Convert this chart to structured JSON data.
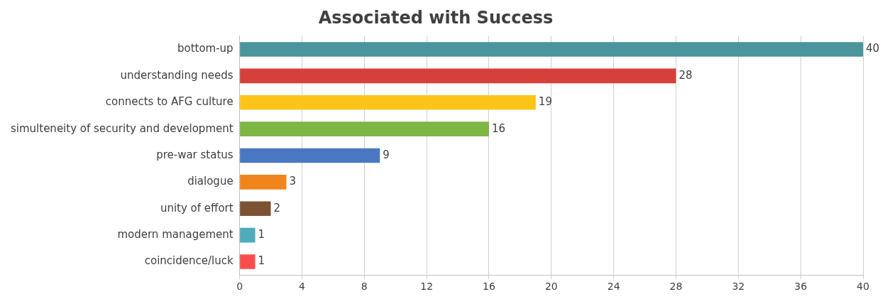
{
  "chart_data": {
    "type": "bar",
    "title": "Associated with Success",
    "orientation": "horizontal",
    "categories": [
      "bottom-up",
      "understanding needs",
      "connects to AFG culture",
      "simulteneity of security and development",
      "pre-war status",
      "dialogue",
      "unity of effort",
      "modern management",
      "coincidence/luck"
    ],
    "values": [
      40,
      28,
      19,
      16,
      9,
      3,
      2,
      1,
      1
    ],
    "colors": [
      "#4a969c",
      "#d6403a",
      "#fcc419",
      "#7db643",
      "#4a78c0",
      "#f0861b",
      "#7b5333",
      "#4eacbb",
      "#fb4c4c"
    ],
    "xlim": [
      0,
      40
    ],
    "xticks": [
      0,
      4,
      8,
      12,
      16,
      20,
      24,
      28,
      32,
      36,
      40
    ],
    "grid": "x",
    "legend": false,
    "data_labels": true
  }
}
